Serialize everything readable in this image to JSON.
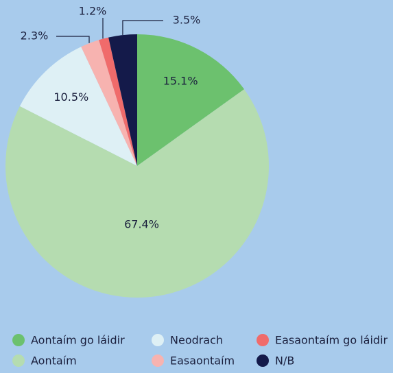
{
  "chart_data": {
    "type": "pie",
    "categories": [
      "Aontaím go láidir",
      "Aontaím",
      "Neodrach",
      "Easaontaím",
      "Easaontaím go láidir",
      "N/B"
    ],
    "values": [
      15.1,
      67.4,
      10.5,
      2.3,
      1.2,
      3.5
    ],
    "value_labels": [
      "15.1%",
      "67.4%",
      "10.5%",
      "2.3%",
      "1.2%",
      "3.5%"
    ],
    "colors": [
      "#6cc16e",
      "#b5dcb0",
      "#def0f5",
      "#f7b3b0",
      "#f06b6b",
      "#141a4a"
    ],
    "legend": "bottom"
  }
}
